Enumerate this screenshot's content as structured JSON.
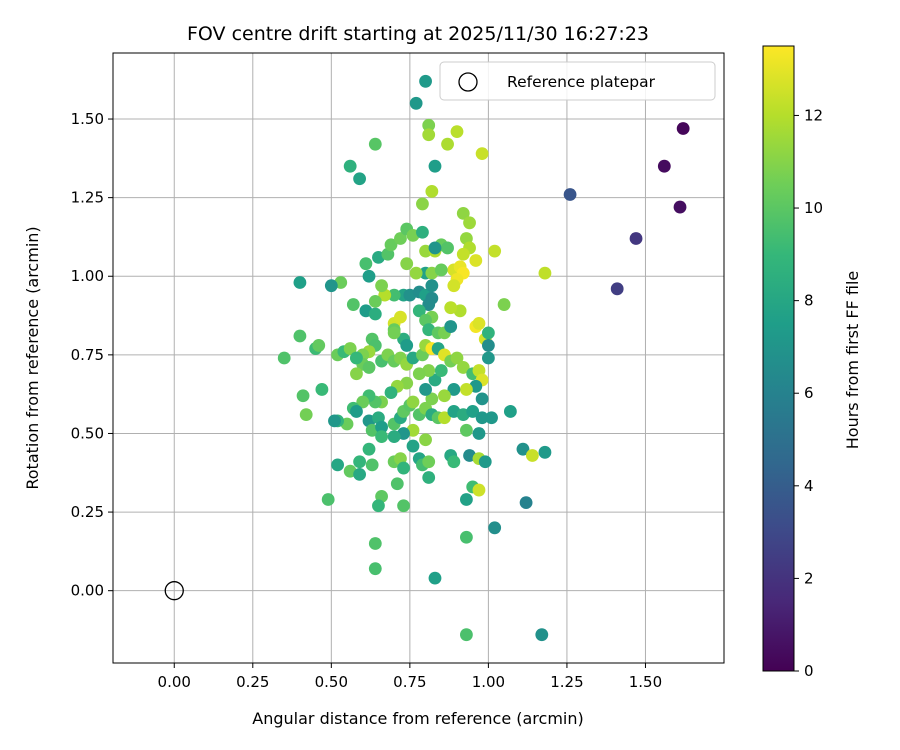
{
  "chart_data": {
    "type": "scatter",
    "title": "FOV centre drift starting at 2025/11/30 16:27:23",
    "xlabel": "Angular distance from reference (arcmin)",
    "ylabel": "Rotation from reference (arcmin)",
    "xlim": [
      -0.195,
      1.75
    ],
    "ylim": [
      -0.23,
      1.71
    ],
    "xticks": [
      "0.00",
      "0.25",
      "0.50",
      "0.75",
      "1.00",
      "1.25",
      "1.50"
    ],
    "yticks": [
      "0.00",
      "0.25",
      "0.50",
      "0.75",
      "1.00",
      "1.25",
      "1.50"
    ],
    "grid": true,
    "legend": {
      "position": "top-right",
      "label": "Reference platepar"
    },
    "reference_point": {
      "x": 0.0,
      "y": 0.0
    },
    "colorbar": {
      "label": "Hours from first FF file",
      "range": [
        0,
        13.5
      ],
      "ticks": [
        "0",
        "2",
        "4",
        "6",
        "8",
        "10",
        "12"
      ],
      "colormap": [
        "#440154",
        "#482878",
        "#3e4989",
        "#31688e",
        "#26828e",
        "#1f9e89",
        "#35b779",
        "#6ece58",
        "#b5de2b",
        "#fde725"
      ]
    },
    "points": [
      [
        1.62,
        1.47,
        0.2
      ],
      [
        1.56,
        1.35,
        0.4
      ],
      [
        1.61,
        1.22,
        0.5
      ],
      [
        1.47,
        1.12,
        2.2
      ],
      [
        1.41,
        0.96,
        2.5
      ],
      [
        1.26,
        1.26,
        3.6
      ],
      [
        0.77,
        1.55,
        7.2
      ],
      [
        0.8,
        1.62,
        7.3
      ],
      [
        0.83,
        1.35,
        7.5
      ],
      [
        0.56,
        1.35,
        8.6
      ],
      [
        0.59,
        1.31,
        7.8
      ],
      [
        0.64,
        1.42,
        9.9
      ],
      [
        0.81,
        1.48,
        10.8
      ],
      [
        0.81,
        1.45,
        11.6
      ],
      [
        0.87,
        1.42,
        11.8
      ],
      [
        0.9,
        1.46,
        12.1
      ],
      [
        0.98,
        1.39,
        12.4
      ],
      [
        0.82,
        1.27,
        11.9
      ],
      [
        0.79,
        1.23,
        11.1
      ],
      [
        0.92,
        1.2,
        11.2
      ],
      [
        0.94,
        1.17,
        11.5
      ],
      [
        0.93,
        1.12,
        11.3
      ],
      [
        0.94,
        1.09,
        11.9
      ],
      [
        1.02,
        1.08,
        12.3
      ],
      [
        0.92,
        1.07,
        12.3
      ],
      [
        0.96,
        1.05,
        12.8
      ],
      [
        0.89,
        1.02,
        12.7
      ],
      [
        0.91,
        1.03,
        13.1
      ],
      [
        0.92,
        1.01,
        13.4
      ],
      [
        0.9,
        0.99,
        13.2
      ],
      [
        0.89,
        0.97,
        12.6
      ],
      [
        1.18,
        1.01,
        12.2
      ],
      [
        1.05,
        0.91,
        10.8
      ],
      [
        0.4,
        0.98,
        7.6
      ],
      [
        0.53,
        0.98,
        10.4
      ],
      [
        0.5,
        0.97,
        7.0
      ],
      [
        0.62,
        1.0,
        7.5
      ],
      [
        0.61,
        1.04,
        9.5
      ],
      [
        0.65,
        1.06,
        8.2
      ],
      [
        0.68,
        1.07,
        9.8
      ],
      [
        0.69,
        1.1,
        10.3
      ],
      [
        0.72,
        1.12,
        10.5
      ],
      [
        0.74,
        1.15,
        10.0
      ],
      [
        0.76,
        1.13,
        10.7
      ],
      [
        0.79,
        1.14,
        8.5
      ],
      [
        0.8,
        1.08,
        11.4
      ],
      [
        0.83,
        1.08,
        11.9
      ],
      [
        0.85,
        1.1,
        10.3
      ],
      [
        0.87,
        1.09,
        9.8
      ],
      [
        0.83,
        1.09,
        7.0
      ],
      [
        0.8,
        1.01,
        7.7
      ],
      [
        0.82,
        1.01,
        11.0
      ],
      [
        0.85,
        1.02,
        10.3
      ],
      [
        0.77,
        1.01,
        11.3
      ],
      [
        0.74,
        1.04,
        11.0
      ],
      [
        0.73,
        0.94,
        7.8
      ],
      [
        0.7,
        0.94,
        9.4
      ],
      [
        0.67,
        0.94,
        12.0
      ],
      [
        0.64,
        0.92,
        10.4
      ],
      [
        0.61,
        0.89,
        7.4
      ],
      [
        0.64,
        0.88,
        8.4
      ],
      [
        0.57,
        0.91,
        9.8
      ],
      [
        0.66,
        0.97,
        10.8
      ],
      [
        0.75,
        0.94,
        6.8
      ],
      [
        0.78,
        0.95,
        6.6
      ],
      [
        0.8,
        0.94,
        7.6
      ],
      [
        0.82,
        0.97,
        6.8
      ],
      [
        0.82,
        0.93,
        6.5
      ],
      [
        0.81,
        0.91,
        6.5
      ],
      [
        0.78,
        0.89,
        8.9
      ],
      [
        0.82,
        0.87,
        10.7
      ],
      [
        0.8,
        0.86,
        10.0
      ],
      [
        0.81,
        0.83,
        8.9
      ],
      [
        0.84,
        0.82,
        10.1
      ],
      [
        0.86,
        0.82,
        10.7
      ],
      [
        0.88,
        0.84,
        7.0
      ],
      [
        0.91,
        0.89,
        11.9
      ],
      [
        0.88,
        0.9,
        12.1
      ],
      [
        0.96,
        0.84,
        13.3
      ],
      [
        0.97,
        0.85,
        12.8
      ],
      [
        0.99,
        0.8,
        12.6
      ],
      [
        1.0,
        0.82,
        8.7
      ],
      [
        1.0,
        0.78,
        6.6
      ],
      [
        1.0,
        0.74,
        7.1
      ],
      [
        0.7,
        0.85,
        12.6
      ],
      [
        0.72,
        0.87,
        12.7
      ],
      [
        0.7,
        0.83,
        10.3
      ],
      [
        0.73,
        0.8,
        8.4
      ],
      [
        0.74,
        0.78,
        7.4
      ],
      [
        0.7,
        0.82,
        10.6
      ],
      [
        0.63,
        0.8,
        9.8
      ],
      [
        0.64,
        0.78,
        9.6
      ],
      [
        0.62,
        0.76,
        11.4
      ],
      [
        0.6,
        0.75,
        10.8
      ],
      [
        0.58,
        0.74,
        9.4
      ],
      [
        0.6,
        0.72,
        10.4
      ],
      [
        0.58,
        0.69,
        11.0
      ],
      [
        0.62,
        0.71,
        10.0
      ],
      [
        0.66,
        0.73,
        9.5
      ],
      [
        0.68,
        0.75,
        10.8
      ],
      [
        0.7,
        0.73,
        10.3
      ],
      [
        0.72,
        0.74,
        10.9
      ],
      [
        0.74,
        0.72,
        11.3
      ],
      [
        0.76,
        0.74,
        8.1
      ],
      [
        0.79,
        0.75,
        10.4
      ],
      [
        0.8,
        0.78,
        11.4
      ],
      [
        0.82,
        0.77,
        13.4
      ],
      [
        0.84,
        0.77,
        7.9
      ],
      [
        0.86,
        0.75,
        12.9
      ],
      [
        0.88,
        0.73,
        10.6
      ],
      [
        0.9,
        0.74,
        11.2
      ],
      [
        0.92,
        0.71,
        11.3
      ],
      [
        0.95,
        0.69,
        9.4
      ],
      [
        0.97,
        0.7,
        12.3
      ],
      [
        0.98,
        0.67,
        12.8
      ],
      [
        0.96,
        0.65,
        7.2
      ],
      [
        0.93,
        0.64,
        12.3
      ],
      [
        0.89,
        0.64,
        7.3
      ],
      [
        0.86,
        0.62,
        11.4
      ],
      [
        0.82,
        0.61,
        10.8
      ],
      [
        0.8,
        0.64,
        7.1
      ],
      [
        0.83,
        0.67,
        8.2
      ],
      [
        0.85,
        0.7,
        9.1
      ],
      [
        0.81,
        0.7,
        10.9
      ],
      [
        0.78,
        0.69,
        10.8
      ],
      [
        0.74,
        0.66,
        11.0
      ],
      [
        0.71,
        0.65,
        11.3
      ],
      [
        0.69,
        0.63,
        8.7
      ],
      [
        0.66,
        0.6,
        10.8
      ],
      [
        0.64,
        0.6,
        9.8
      ],
      [
        0.62,
        0.62,
        9.3
      ],
      [
        0.6,
        0.6,
        10.4
      ],
      [
        0.57,
        0.58,
        9.3
      ],
      [
        0.58,
        0.57,
        7.4
      ],
      [
        0.55,
        0.53,
        10.4
      ],
      [
        0.52,
        0.54,
        8.8
      ],
      [
        0.51,
        0.54,
        7.1
      ],
      [
        0.47,
        0.64,
        9.1
      ],
      [
        0.41,
        0.62,
        9.8
      ],
      [
        0.42,
        0.56,
        10.6
      ],
      [
        0.35,
        0.74,
        9.7
      ],
      [
        0.4,
        0.81,
        9.7
      ],
      [
        0.45,
        0.77,
        9.2
      ],
      [
        0.46,
        0.78,
        10.2
      ],
      [
        0.52,
        0.75,
        10.4
      ],
      [
        0.54,
        0.76,
        9.1
      ],
      [
        0.56,
        0.77,
        10.8
      ],
      [
        0.58,
        0.74,
        9.0
      ],
      [
        0.62,
        0.54,
        7.1
      ],
      [
        0.65,
        0.55,
        8.3
      ],
      [
        0.63,
        0.51,
        9.8
      ],
      [
        0.66,
        0.52,
        7.5
      ],
      [
        0.7,
        0.53,
        9.8
      ],
      [
        0.72,
        0.55,
        8.2
      ],
      [
        0.73,
        0.57,
        10.1
      ],
      [
        0.75,
        0.59,
        9.9
      ],
      [
        0.76,
        0.6,
        11.2
      ],
      [
        0.78,
        0.56,
        9.8
      ],
      [
        0.8,
        0.58,
        10.8
      ],
      [
        0.82,
        0.56,
        8.3
      ],
      [
        0.84,
        0.55,
        10.0
      ],
      [
        0.86,
        0.55,
        12.0
      ],
      [
        0.89,
        0.57,
        7.8
      ],
      [
        0.92,
        0.56,
        8.3
      ],
      [
        0.95,
        0.57,
        7.6
      ],
      [
        0.98,
        0.61,
        6.9
      ],
      [
        0.98,
        0.55,
        7.2
      ],
      [
        1.01,
        0.55,
        7.2
      ],
      [
        1.07,
        0.57,
        7.6
      ],
      [
        0.97,
        0.5,
        7.2
      ],
      [
        0.93,
        0.51,
        10.1
      ],
      [
        0.76,
        0.51,
        11.6
      ],
      [
        0.73,
        0.5,
        7.0
      ],
      [
        0.7,
        0.49,
        8.3
      ],
      [
        0.66,
        0.49,
        9.1
      ],
      [
        0.62,
        0.45,
        8.9
      ],
      [
        0.59,
        0.41,
        8.9
      ],
      [
        0.63,
        0.4,
        9.7
      ],
      [
        0.52,
        0.4,
        8.0
      ],
      [
        0.56,
        0.38,
        10.2
      ],
      [
        0.59,
        0.37,
        8.1
      ],
      [
        0.76,
        0.46,
        7.8
      ],
      [
        0.8,
        0.48,
        11.1
      ],
      [
        0.78,
        0.42,
        7.9
      ],
      [
        0.79,
        0.4,
        9.4
      ],
      [
        0.81,
        0.41,
        10.5
      ],
      [
        0.81,
        0.36,
        8.6
      ],
      [
        0.88,
        0.43,
        8.1
      ],
      [
        0.89,
        0.41,
        9.1
      ],
      [
        0.94,
        0.43,
        6.5
      ],
      [
        0.97,
        0.42,
        11.7
      ],
      [
        0.99,
        0.41,
        7.3
      ],
      [
        0.95,
        0.33,
        9.3
      ],
      [
        0.97,
        0.32,
        12.5
      ],
      [
        0.93,
        0.29,
        7.7
      ],
      [
        0.7,
        0.41,
        10.4
      ],
      [
        0.72,
        0.42,
        11.0
      ],
      [
        0.73,
        0.39,
        8.8
      ],
      [
        0.71,
        0.34,
        9.7
      ],
      [
        0.66,
        0.3,
        10.1
      ],
      [
        0.65,
        0.27,
        8.9
      ],
      [
        0.73,
        0.27,
        9.8
      ],
      [
        0.49,
        0.29,
        9.6
      ],
      [
        1.11,
        0.45,
        6.8
      ],
      [
        1.14,
        0.43,
        12.4
      ],
      [
        1.18,
        0.44,
        7.3
      ],
      [
        1.12,
        0.28,
        6.0
      ],
      [
        1.02,
        0.2,
        6.7
      ],
      [
        0.93,
        0.17,
        9.5
      ],
      [
        0.64,
        0.15,
        9.7
      ],
      [
        0.64,
        0.07,
        9.5
      ],
      [
        0.83,
        0.04,
        7.6
      ],
      [
        0.93,
        -0.14,
        9.6
      ],
      [
        1.17,
        -0.14,
        6.8
      ]
    ]
  }
}
